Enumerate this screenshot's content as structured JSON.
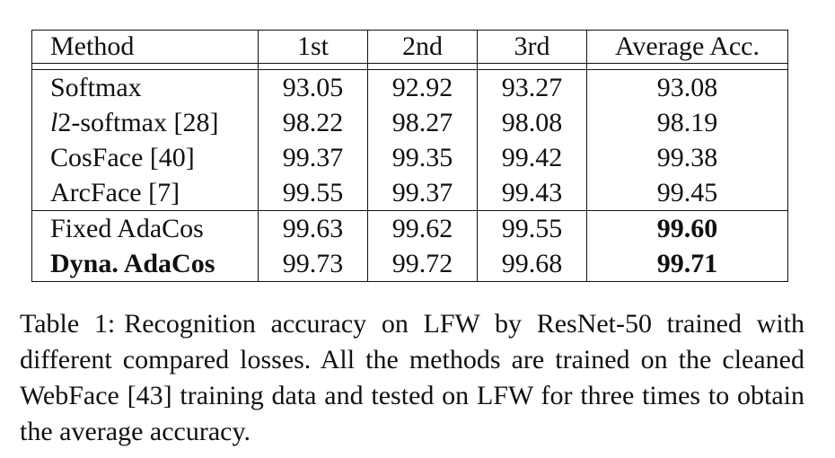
{
  "table": {
    "headers": [
      "Method",
      "1st",
      "2nd",
      "3rd",
      "Average Acc."
    ],
    "groups": [
      {
        "rows": [
          {
            "method": "Softmax",
            "v1": "93.05",
            "v2": "92.92",
            "v3": "93.27",
            "avg": "93.08"
          },
          {
            "method_italic": "l",
            "method_rest": "2-softmax [28]",
            "v1": "98.22",
            "v2": "98.27",
            "v3": "98.08",
            "avg": "98.19"
          },
          {
            "method": "CosFace [40]",
            "v1": "99.37",
            "v2": "99.35",
            "v3": "99.42",
            "avg": "99.38"
          },
          {
            "method": "ArcFace [7]",
            "v1": "99.55",
            "v2": "99.37",
            "v3": "99.43",
            "avg": "99.45"
          }
        ]
      },
      {
        "rows": [
          {
            "method": "Fixed AdaCos",
            "v1": "99.63",
            "v2": "99.62",
            "v3": "99.55",
            "avg": "99.60"
          },
          {
            "method": "Dyna. AdaCos",
            "v1": "99.73",
            "v2": "99.72",
            "v3": "99.68",
            "avg": "99.71"
          }
        ]
      }
    ]
  },
  "caption": {
    "label": "Table 1:",
    "text": "Recognition accuracy on LFW by ResNet-50 trained with different compared losses. All the methods are trained on the cleaned WebFace [43] training data and tested on LFW for three times to obtain the average accuracy."
  }
}
